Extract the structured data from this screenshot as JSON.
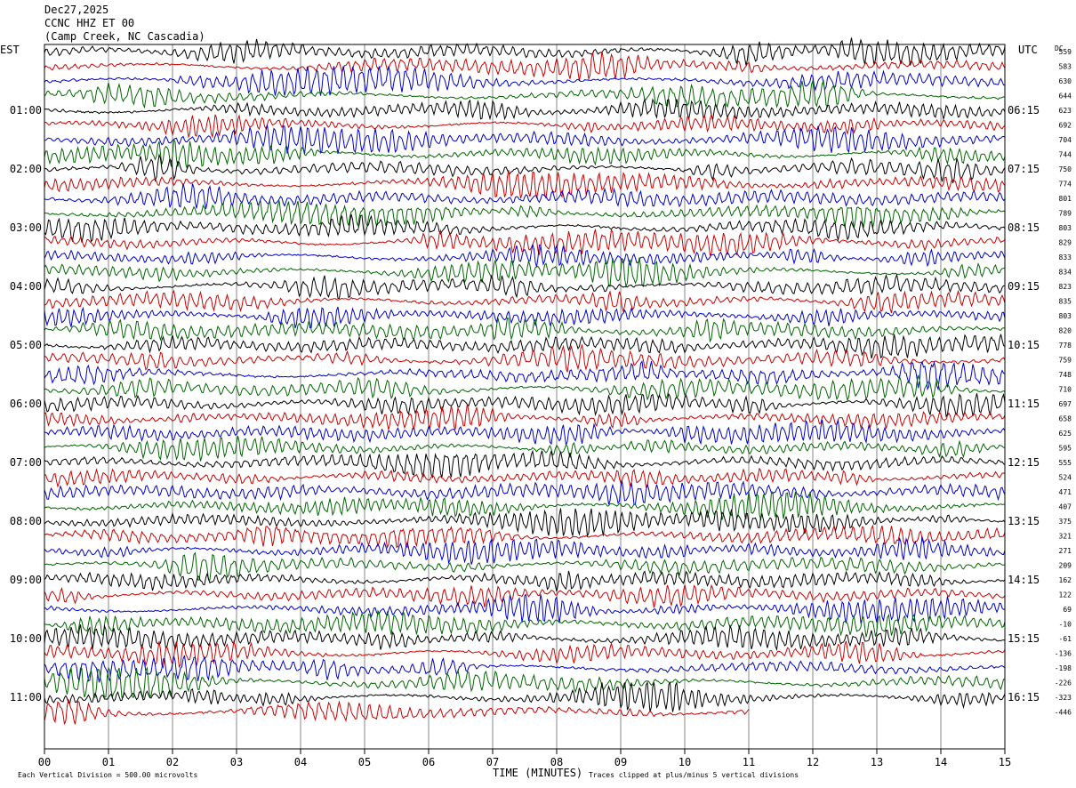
{
  "header": {
    "date": "Dec27,2025",
    "station": "CCNC HHZ ET 00",
    "location": "(Camp Creek, NC Cascadia)"
  },
  "left_zone": "EST",
  "right_zone": "UTC",
  "dc_heading": "DC",
  "footer": {
    "scale": "Each Vertical Division =  500.00 microvolts",
    "xlabel": "TIME (MINUTES)",
    "clip": "Traces clipped at plus/minus 5 vertical divisions"
  },
  "colors": {
    "trace": [
      "#000000",
      "#cc0000",
      "#0000cc",
      "#006600"
    ],
    "grid": "#888888"
  },
  "chart_data": {
    "type": "line",
    "title": "",
    "x_ticks": [
      "00",
      "01",
      "02",
      "03",
      "04",
      "05",
      "06",
      "07",
      "08",
      "09",
      "10",
      "11",
      "12",
      "13",
      "14",
      "15"
    ],
    "xlim": [
      0,
      15
    ],
    "row_minutes": 15,
    "rows_per_hour": 4,
    "left_hours": [
      "01:00",
      "02:00",
      "03:00",
      "04:00",
      "05:00",
      "06:00",
      "07:00",
      "08:00",
      "09:00",
      "10:00",
      "11:00"
    ],
    "right_hours": [
      "06:15",
      "07:15",
      "08:15",
      "09:15",
      "10:15",
      "11:15",
      "12:15",
      "13:15",
      "14:15",
      "15:15",
      "16:15"
    ],
    "dc_offsets": [
      559,
      583,
      630,
      644,
      623,
      692,
      704,
      744,
      750,
      774,
      801,
      789,
      803,
      829,
      833,
      834,
      823,
      835,
      803,
      820,
      778,
      759,
      748,
      710,
      697,
      658,
      625,
      595,
      555,
      524,
      471,
      407,
      375,
      321,
      271,
      209,
      162,
      122,
      69,
      -10,
      -61,
      -136,
      -198,
      -226,
      -323,
      -446
    ],
    "last_row_end_minute": 11
  }
}
